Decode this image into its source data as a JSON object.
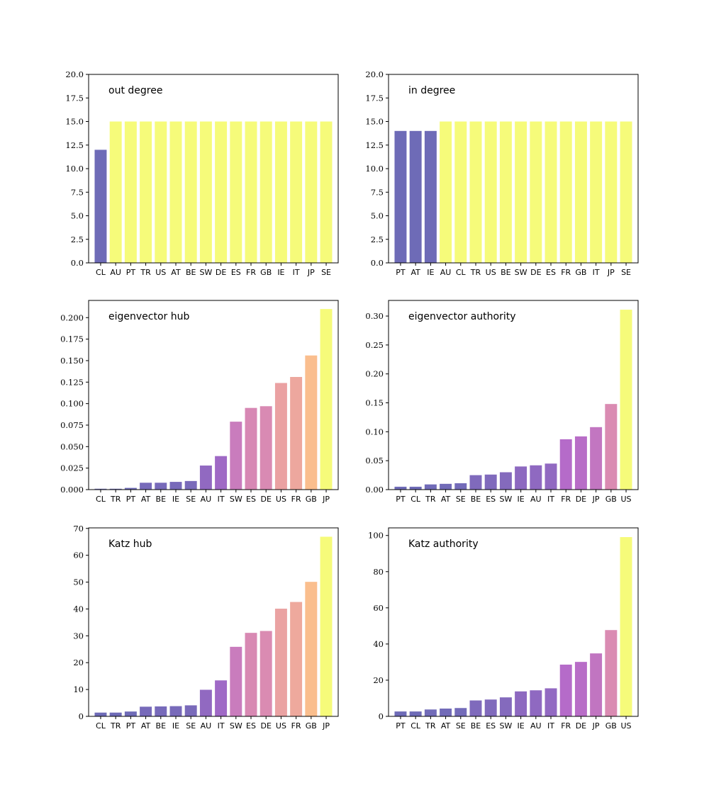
{
  "chart_data": [
    {
      "type": "bar",
      "title": "out degree",
      "categories": [
        "CL",
        "AU",
        "PT",
        "TR",
        "US",
        "AT",
        "BE",
        "SW",
        "DE",
        "ES",
        "FR",
        "GB",
        "IE",
        "IT",
        "JP",
        "SE"
      ],
      "values": [
        12,
        15,
        15,
        15,
        15,
        15,
        15,
        15,
        15,
        15,
        15,
        15,
        15,
        15,
        15,
        15
      ],
      "ylim": [
        0,
        20
      ],
      "yticks": [
        "0.0",
        "2.5",
        "5.0",
        "7.5",
        "10.0",
        "12.5",
        "15.0",
        "17.5",
        "20.0"
      ],
      "ytick_values": [
        0,
        2.5,
        5,
        7.5,
        10,
        12.5,
        15,
        17.5,
        20
      ],
      "grid": false,
      "colormap": "plasma"
    },
    {
      "type": "bar",
      "title": "in degree",
      "categories": [
        "PT",
        "AT",
        "IE",
        "AU",
        "CL",
        "TR",
        "US",
        "BE",
        "SW",
        "DE",
        "ES",
        "FR",
        "GB",
        "IT",
        "JP",
        "SE"
      ],
      "values": [
        14,
        14,
        14,
        15,
        15,
        15,
        15,
        15,
        15,
        15,
        15,
        15,
        15,
        15,
        15,
        15
      ],
      "ylim": [
        0,
        20
      ],
      "yticks": [
        "0.0",
        "2.5",
        "5.0",
        "7.5",
        "10.0",
        "12.5",
        "15.0",
        "17.5",
        "20.0"
      ],
      "ytick_values": [
        0,
        2.5,
        5,
        7.5,
        10,
        12.5,
        15,
        17.5,
        20
      ],
      "grid": false,
      "colormap": "plasma"
    },
    {
      "type": "bar",
      "title": "eigenvector hub",
      "categories": [
        "CL",
        "TR",
        "PT",
        "AT",
        "BE",
        "IE",
        "SE",
        "AU",
        "IT",
        "SW",
        "ES",
        "DE",
        "US",
        "FR",
        "GB",
        "JP"
      ],
      "values": [
        0.001,
        0.001,
        0.002,
        0.008,
        0.008,
        0.009,
        0.01,
        0.028,
        0.039,
        0.079,
        0.095,
        0.097,
        0.124,
        0.131,
        0.156,
        0.21
      ],
      "ylim": [
        0,
        0.22
      ],
      "yticks": [
        "0.000",
        "0.025",
        "0.050",
        "0.075",
        "0.100",
        "0.125",
        "0.150",
        "0.175",
        "0.200"
      ],
      "ytick_values": [
        0,
        0.025,
        0.05,
        0.075,
        0.1,
        0.125,
        0.15,
        0.175,
        0.2
      ],
      "grid": false,
      "colormap": "plasma"
    },
    {
      "type": "bar",
      "title": "eigenvector authority",
      "categories": [
        "PT",
        "CL",
        "TR",
        "AT",
        "SE",
        "BE",
        "ES",
        "SW",
        "IE",
        "AU",
        "IT",
        "FR",
        "DE",
        "JP",
        "GB",
        "US"
      ],
      "values": [
        0.005,
        0.005,
        0.009,
        0.01,
        0.011,
        0.025,
        0.026,
        0.03,
        0.04,
        0.042,
        0.045,
        0.087,
        0.092,
        0.108,
        0.148,
        0.311
      ],
      "ylim": [
        0,
        0.327
      ],
      "yticks": [
        "0.00",
        "0.05",
        "0.10",
        "0.15",
        "0.20",
        "0.25",
        "0.30"
      ],
      "ytick_values": [
        0,
        0.05,
        0.1,
        0.15,
        0.2,
        0.25,
        0.3
      ],
      "grid": false,
      "colormap": "plasma"
    },
    {
      "type": "bar",
      "title": "Katz hub",
      "categories": [
        "CL",
        "TR",
        "PT",
        "AT",
        "BE",
        "IE",
        "SE",
        "AU",
        "IT",
        "SW",
        "ES",
        "DE",
        "US",
        "FR",
        "GB",
        "JP"
      ],
      "values": [
        1.4,
        1.4,
        1.8,
        3.6,
        3.7,
        3.8,
        4.1,
        9.9,
        13.4,
        25.9,
        31.1,
        31.8,
        40.1,
        42.6,
        50.1,
        66.9
      ],
      "ylim": [
        0,
        70.2
      ],
      "yticks": [
        "0",
        "10",
        "20",
        "30",
        "40",
        "50",
        "60",
        "70"
      ],
      "ytick_values": [
        0,
        10,
        20,
        30,
        40,
        50,
        60,
        70
      ],
      "grid": false,
      "colormap": "plasma"
    },
    {
      "type": "bar",
      "title": "Katz authority",
      "categories": [
        "PT",
        "CL",
        "TR",
        "AT",
        "SE",
        "BE",
        "ES",
        "SW",
        "IE",
        "AU",
        "IT",
        "FR",
        "DE",
        "JP",
        "GB",
        "US"
      ],
      "values": [
        2.7,
        2.7,
        3.8,
        4.3,
        4.6,
        8.8,
        9.3,
        10.5,
        13.8,
        14.4,
        15.5,
        28.6,
        30.1,
        34.8,
        47.7,
        99.1
      ],
      "ylim": [
        0,
        104.2
      ],
      "yticks": [
        "0",
        "20",
        "40",
        "60",
        "80",
        "100"
      ],
      "ytick_values": [
        0,
        20,
        40,
        60,
        80,
        100
      ],
      "grid": false,
      "colormap": "plasma"
    }
  ]
}
